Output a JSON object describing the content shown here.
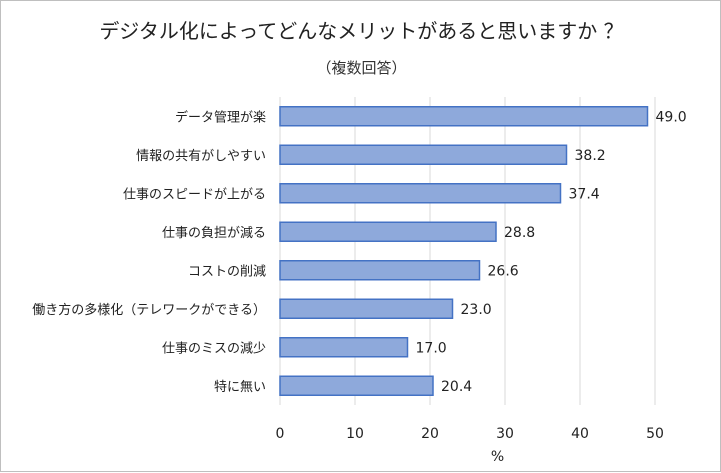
{
  "chart_data": {
    "type": "bar",
    "orientation": "horizontal",
    "title": "デジタル化によってどんなメリットがあると思いますか ？",
    "subtitle": "（複数回答）",
    "xlabel": "%",
    "ylabel": "",
    "xlim": [
      0,
      50
    ],
    "ticks": [
      "0",
      "10",
      "20",
      "30",
      "40",
      "50"
    ],
    "grid": true,
    "legend": "none",
    "categories": [
      "データ管理が楽",
      "情報の共有がしやすい",
      "仕事のスピードが上がる",
      "仕事の負担が減る",
      "コストの削減",
      "働き方の多様化（テレワークができる）",
      "仕事のミスの減少",
      "特に無い"
    ],
    "values": [
      49.0,
      38.2,
      37.4,
      28.8,
      26.6,
      23.0,
      17.0,
      20.4
    ],
    "value_labels": [
      "49.0",
      "38.2",
      "37.4",
      "28.8",
      "26.6",
      "23.0",
      "17.0",
      "20.4"
    ],
    "colors": {
      "bar_fill": "#8EA9DB",
      "bar_stroke": "#4472C4",
      "grid": "#d9d9d9"
    }
  }
}
